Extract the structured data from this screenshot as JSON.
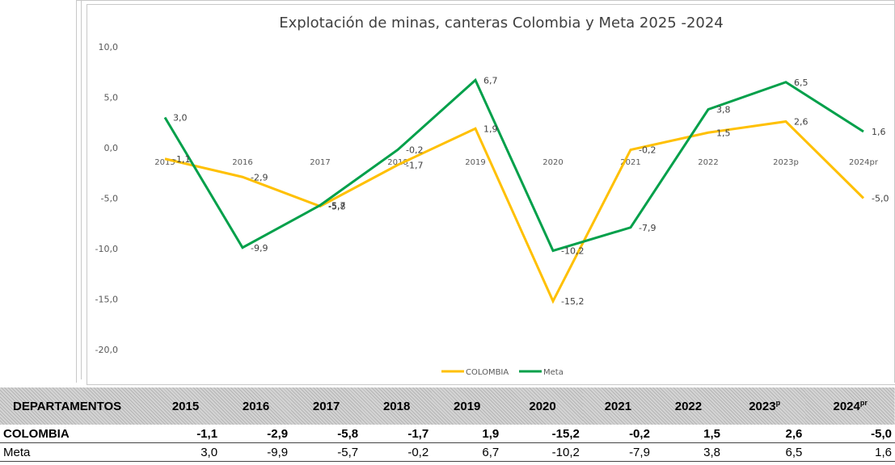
{
  "chart_data": {
    "type": "line",
    "title": "Explotación de minas, canteras Colombia y  Meta 2025 -2024",
    "categories": [
      "2015",
      "2016",
      "2017",
      "2018",
      "2019",
      "2020",
      "2021",
      "2022",
      "2023p",
      "2024pr"
    ],
    "y_ticks": [
      "10,0",
      "5,0",
      "0,0",
      "-5,0",
      "-10,0",
      "-15,0",
      "-20,0"
    ],
    "ylim": [
      -20,
      10
    ],
    "grid": false,
    "legend_position": "bottom",
    "series": [
      {
        "name": "COLOMBIA",
        "color": "#FFC000",
        "values": [
          -1.1,
          -2.9,
          -5.8,
          -1.7,
          1.9,
          -15.2,
          -0.2,
          1.5,
          2.6,
          -5.0
        ],
        "labels": [
          "-1,1",
          "-2,9",
          "-5,8",
          "-1,7",
          "1,9",
          "-15,2",
          "-0,2",
          "1,5",
          "2,6",
          "-5,0"
        ]
      },
      {
        "name": "Meta",
        "color": "#00A04A",
        "values": [
          3.0,
          -9.9,
          -5.7,
          -0.2,
          6.7,
          -10.2,
          -7.9,
          3.8,
          6.5,
          1.6
        ],
        "labels": [
          "3,0",
          "-9,9",
          "-5,7",
          "-0,2",
          "6,7",
          "-10,2",
          "-7,9",
          "3,8",
          "6,5",
          "1,6"
        ]
      }
    ]
  },
  "table": {
    "header_label": "DEPARTAMENTOS",
    "years": [
      "2015",
      "2016",
      "2017",
      "2018",
      "2019",
      "2020",
      "2021",
      "2022"
    ],
    "year_2023": "2023",
    "year_2023_sup": "p",
    "year_2024": "2024",
    "year_2024_sup": "pr",
    "rows": [
      {
        "name": "COLOMBIA",
        "values": [
          "-1,1",
          "-2,9",
          "-5,8",
          "-1,7",
          "1,9",
          "-15,2",
          "-0,2",
          "1,5",
          "2,6",
          "-5,0"
        ]
      },
      {
        "name": "Meta",
        "values": [
          "3,0",
          "-9,9",
          "-5,7",
          "-0,2",
          "6,7",
          "-10,2",
          "-7,9",
          "3,8",
          "6,5",
          "1,6"
        ]
      }
    ]
  }
}
